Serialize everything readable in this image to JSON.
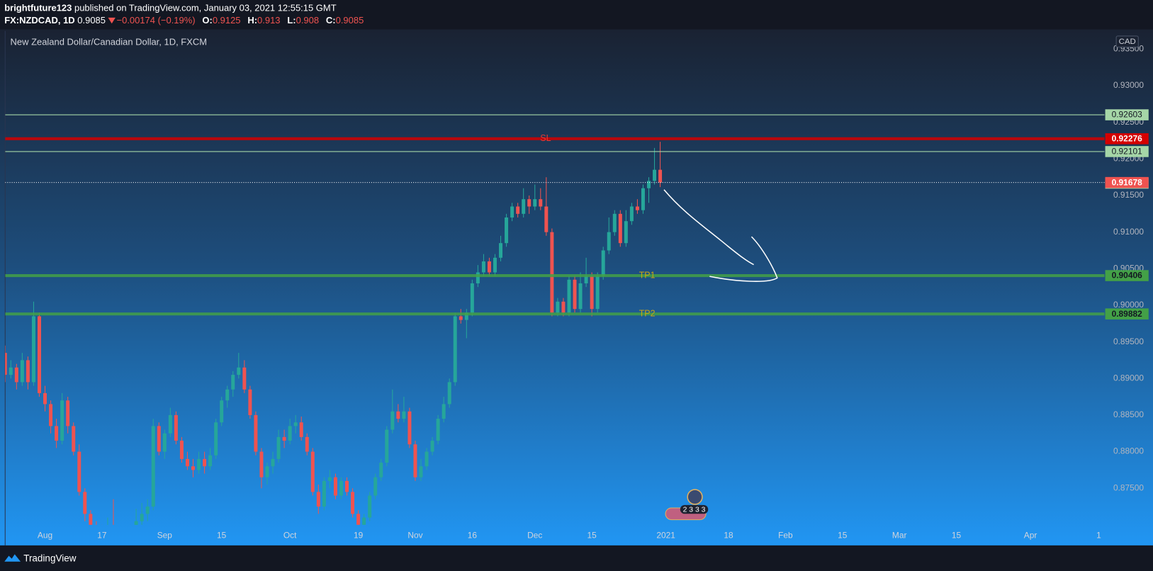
{
  "header": {
    "author": "brightfuture123",
    "published": "published on TradingView.com, January 03, 2021 12:55:15 GMT",
    "symbol": "FX:NZDCAD, 1D",
    "change": "−0.00174 (−0.19%)",
    "ohlc_labels": [
      "O:",
      "H:",
      "L:",
      "C:"
    ]
  },
  "chart_data": {
    "type": "candlestick",
    "title": "New Zealand Dollar/Canadian Dollar, 1D, FXCM",
    "currency": "CAD",
    "x": [
      "2020-07-23",
      "2020-07-24",
      "2020-07-27",
      "2020-07-28",
      "2020-07-29",
      "2020-07-30",
      "2020-07-31",
      "2020-08-03",
      "2020-08-04",
      "2020-08-05",
      "2020-08-06",
      "2020-08-07",
      "2020-08-10",
      "2020-08-11",
      "2020-08-12",
      "2020-08-13",
      "2020-08-14",
      "2020-08-17",
      "2020-08-18",
      "2020-08-19",
      "2020-08-20",
      "2020-08-21",
      "2020-08-24",
      "2020-08-25",
      "2020-08-26",
      "2020-08-27",
      "2020-08-28",
      "2020-08-31",
      "2020-09-01",
      "2020-09-02",
      "2020-09-03",
      "2020-09-04",
      "2020-09-07",
      "2020-09-08",
      "2020-09-09",
      "2020-09-10",
      "2020-09-11",
      "2020-09-14",
      "2020-09-15",
      "2020-09-16",
      "2020-09-17",
      "2020-09-18",
      "2020-09-21",
      "2020-09-22",
      "2020-09-23",
      "2020-09-24",
      "2020-09-25",
      "2020-09-28",
      "2020-09-29",
      "2020-09-30",
      "2020-10-01",
      "2020-10-02",
      "2020-10-05",
      "2020-10-06",
      "2020-10-07",
      "2020-10-08",
      "2020-10-09",
      "2020-10-12",
      "2020-10-13",
      "2020-10-14",
      "2020-10-15",
      "2020-10-16",
      "2020-10-19",
      "2020-10-20",
      "2020-10-21",
      "2020-10-22",
      "2020-10-23",
      "2020-10-26",
      "2020-10-27",
      "2020-10-28",
      "2020-10-29",
      "2020-10-30",
      "2020-11-02",
      "2020-11-03",
      "2020-11-04",
      "2020-11-05",
      "2020-11-06",
      "2020-11-09",
      "2020-11-10",
      "2020-11-11",
      "2020-11-12",
      "2020-11-13",
      "2020-11-16",
      "2020-11-17",
      "2020-11-18",
      "2020-11-19",
      "2020-11-20",
      "2020-11-23",
      "2020-11-24",
      "2020-11-25",
      "2020-11-26",
      "2020-11-27",
      "2020-11-30",
      "2020-12-01",
      "2020-12-02",
      "2020-12-03",
      "2020-12-04",
      "2020-12-07",
      "2020-12-08",
      "2020-12-09",
      "2020-12-10",
      "2020-12-11",
      "2020-12-14",
      "2020-12-15",
      "2020-12-16",
      "2020-12-17",
      "2020-12-18",
      "2020-12-21",
      "2020-12-22",
      "2020-12-23",
      "2020-12-24",
      "2020-12-25",
      "2020-12-28",
      "2020-12-29",
      "2020-12-30",
      "2020-12-31"
    ],
    "open": [
      0.8935,
      0.8905,
      0.8915,
      0.8895,
      0.8925,
      0.8895,
      0.8985,
      0.888,
      0.8865,
      0.8835,
      0.8815,
      0.887,
      0.8835,
      0.88,
      0.8745,
      0.8715,
      0.87,
      0.8695,
      0.869,
      0.87,
      0.869,
      0.8685,
      0.869,
      0.8695,
      0.8705,
      0.8715,
      0.8725,
      0.8835,
      0.88,
      0.8825,
      0.885,
      0.8815,
      0.879,
      0.878,
      0.8775,
      0.879,
      0.878,
      0.8795,
      0.884,
      0.887,
      0.8885,
      0.8905,
      0.8915,
      0.8885,
      0.885,
      0.88,
      0.8765,
      0.878,
      0.879,
      0.882,
      0.8815,
      0.8835,
      0.884,
      0.882,
      0.88,
      0.8745,
      0.8725,
      0.876,
      0.8765,
      0.874,
      0.876,
      0.8745,
      0.8715,
      0.87,
      0.871,
      0.874,
      0.8765,
      0.8785,
      0.883,
      0.8855,
      0.8845,
      0.8855,
      0.881,
      0.8765,
      0.878,
      0.88,
      0.8815,
      0.8845,
      0.8865,
      0.8895,
      0.8985,
      0.898,
      0.899,
      0.903,
      0.9045,
      0.906,
      0.9045,
      0.9065,
      0.9085,
      0.912,
      0.9135,
      0.9125,
      0.9145,
      0.9135,
      0.9145,
      0.9135,
      0.91,
      0.899,
      0.9005,
      0.899,
      0.9035,
      0.8995,
      0.903,
      0.904,
      0.8995,
      0.904,
      0.9075,
      0.91,
      0.9125,
      0.9085,
      0.9115,
      0.9135,
      0.913,
      0.916,
      0.917,
      0.91852
    ],
    "high": [
      0.8945,
      0.8925,
      0.892,
      0.8935,
      0.893,
      0.9005,
      0.899,
      0.889,
      0.887,
      0.8845,
      0.888,
      0.8875,
      0.884,
      0.881,
      0.875,
      0.872,
      0.8705,
      0.87,
      0.871,
      0.8735,
      0.8695,
      0.8698,
      0.87,
      0.8722,
      0.873,
      0.8735,
      0.8845,
      0.884,
      0.883,
      0.886,
      0.8855,
      0.882,
      0.88,
      0.879,
      0.88,
      0.88,
      0.8805,
      0.8845,
      0.8875,
      0.889,
      0.891,
      0.8935,
      0.8925,
      0.889,
      0.8855,
      0.8805,
      0.8785,
      0.88,
      0.883,
      0.883,
      0.8845,
      0.885,
      0.8848,
      0.8825,
      0.8805,
      0.8755,
      0.8765,
      0.8775,
      0.877,
      0.8765,
      0.8765,
      0.875,
      0.872,
      0.8715,
      0.8745,
      0.877,
      0.879,
      0.8835,
      0.8885,
      0.8865,
      0.8875,
      0.886,
      0.8815,
      0.879,
      0.8805,
      0.882,
      0.885,
      0.8875,
      0.89,
      0.899,
      0.8995,
      0.8995,
      0.9035,
      0.9055,
      0.907,
      0.9065,
      0.907,
      0.9095,
      0.9125,
      0.914,
      0.914,
      0.916,
      0.915,
      0.9165,
      0.916,
      0.9175,
      0.9105,
      0.901,
      0.901,
      0.904,
      0.904,
      0.9045,
      0.9065,
      0.9045,
      0.9045,
      0.908,
      0.912,
      0.913,
      0.913,
      0.913,
      0.914,
      0.9145,
      0.9165,
      0.9175,
      0.9215,
      0.92234
    ],
    "low": [
      0.8895,
      0.89,
      0.8885,
      0.889,
      0.8885,
      0.889,
      0.8875,
      0.8855,
      0.8825,
      0.8805,
      0.881,
      0.8825,
      0.8795,
      0.874,
      0.8705,
      0.8695,
      0.8685,
      0.868,
      0.8685,
      0.8685,
      0.8675,
      0.868,
      0.8682,
      0.869,
      0.87,
      0.8705,
      0.872,
      0.8795,
      0.879,
      0.882,
      0.881,
      0.8785,
      0.8775,
      0.8765,
      0.877,
      0.877,
      0.8775,
      0.879,
      0.8835,
      0.886,
      0.8875,
      0.89,
      0.888,
      0.8845,
      0.8795,
      0.875,
      0.8755,
      0.877,
      0.8785,
      0.8805,
      0.881,
      0.8825,
      0.8815,
      0.8795,
      0.874,
      0.8715,
      0.872,
      0.875,
      0.8735,
      0.8735,
      0.874,
      0.871,
      0.8695,
      0.869,
      0.8705,
      0.8735,
      0.876,
      0.878,
      0.8825,
      0.884,
      0.884,
      0.8805,
      0.876,
      0.876,
      0.8775,
      0.8795,
      0.881,
      0.884,
      0.886,
      0.889,
      0.8975,
      0.8955,
      0.8985,
      0.9025,
      0.904,
      0.904,
      0.904,
      0.906,
      0.908,
      0.9115,
      0.912,
      0.912,
      0.9125,
      0.913,
      0.913,
      0.9095,
      0.8985,
      0.8985,
      0.8985,
      0.8985,
      0.899,
      0.899,
      0.9025,
      0.8985,
      0.899,
      0.9035,
      0.907,
      0.9095,
      0.908,
      0.908,
      0.911,
      0.9125,
      0.9125,
      0.914,
      0.9165,
      0.91615
    ],
    "close": [
      0.8905,
      0.8915,
      0.8895,
      0.8925,
      0.8895,
      0.8985,
      0.888,
      0.8865,
      0.8835,
      0.8815,
      0.887,
      0.8835,
      0.88,
      0.8745,
      0.8715,
      0.87,
      0.8695,
      0.869,
      0.87,
      0.869,
      0.8685,
      0.869,
      0.8695,
      0.8705,
      0.8715,
      0.8725,
      0.8835,
      0.88,
      0.8825,
      0.885,
      0.8815,
      0.879,
      0.878,
      0.8775,
      0.879,
      0.878,
      0.8795,
      0.884,
      0.887,
      0.8885,
      0.8905,
      0.8915,
      0.8885,
      0.885,
      0.88,
      0.8765,
      0.878,
      0.879,
      0.882,
      0.8815,
      0.8835,
      0.884,
      0.882,
      0.88,
      0.8745,
      0.8725,
      0.876,
      0.8765,
      0.874,
      0.876,
      0.8745,
      0.8715,
      0.87,
      0.871,
      0.874,
      0.8765,
      0.8785,
      0.883,
      0.8855,
      0.8845,
      0.8855,
      0.881,
      0.8765,
      0.878,
      0.88,
      0.8815,
      0.8845,
      0.8865,
      0.8895,
      0.8985,
      0.898,
      0.899,
      0.903,
      0.9045,
      0.906,
      0.9045,
      0.9065,
      0.9085,
      0.912,
      0.9135,
      0.9125,
      0.9145,
      0.9135,
      0.9145,
      0.9135,
      0.91,
      0.899,
      0.9005,
      0.899,
      0.9035,
      0.8995,
      0.903,
      0.904,
      0.8995,
      0.904,
      0.9075,
      0.91,
      0.9125,
      0.9085,
      0.9115,
      0.9135,
      0.913,
      0.916,
      0.917,
      0.91852,
      0.91678
    ],
    "up_color": "#26a69a",
    "down_color": "#ef5350",
    "ylim": [
      0.87,
      0.9375
    ],
    "yticks": [
      {
        "value": 0.875,
        "label": "0.87500"
      },
      {
        "value": 0.88,
        "label": "0.88000"
      },
      {
        "value": 0.885,
        "label": "0.88500"
      },
      {
        "value": 0.89,
        "label": "0.89000"
      },
      {
        "value": 0.895,
        "label": "0.89500"
      },
      {
        "value": 0.9,
        "label": "0.90000"
      },
      {
        "value": 0.905,
        "label": "0.90500"
      },
      {
        "value": 0.91,
        "label": "0.91000"
      },
      {
        "value": 0.915,
        "label": "0.91500"
      },
      {
        "value": 0.92,
        "label": "0.92000"
      },
      {
        "value": 0.925,
        "label": "0.92500"
      },
      {
        "value": 0.93,
        "label": "0.93000"
      },
      {
        "value": 0.935,
        "label": "0.93500"
      }
    ],
    "xlim": [
      "2020-07-23",
      "2021-04-20"
    ],
    "xticks": [
      {
        "value": "2020-08-03",
        "label": "Aug"
      },
      {
        "value": "2020-08-17",
        "label": "17"
      },
      {
        "value": "2020-09-01",
        "label": "Sep"
      },
      {
        "value": "2020-09-15",
        "label": "15"
      },
      {
        "value": "2020-10-01",
        "label": "Oct"
      },
      {
        "value": "2020-10-19",
        "label": "19"
      },
      {
        "value": "2020-11-02",
        "label": "Nov"
      },
      {
        "value": "2020-11-16",
        "label": "16"
      },
      {
        "value": "2020-12-01",
        "label": "Dec"
      },
      {
        "value": "2020-12-15",
        "label": "15"
      },
      {
        "value": "2021-01-01",
        "label": "2021"
      },
      {
        "value": "2021-01-18",
        "label": "18"
      },
      {
        "value": "2021-02-01",
        "label": "Feb"
      },
      {
        "value": "2021-02-15",
        "label": "15"
      },
      {
        "value": "2021-03-01",
        "label": "Mar"
      },
      {
        "value": "2021-03-15",
        "label": "15"
      },
      {
        "value": "2021-04-01",
        "label": "Apr"
      },
      {
        "value": "2021-04-19",
        "label": "1"
      }
    ],
    "levels": [
      {
        "value": 0.92603,
        "color": "#a5d6a7",
        "width": 1,
        "text_color": "#131722"
      },
      {
        "name": "SL",
        "value": 0.92276,
        "color": "#d50000",
        "width": 4,
        "text_color": "#ffffff",
        "name_color": "#e53935"
      },
      {
        "value": 0.92101,
        "color": "#a5d6a7",
        "width": 1,
        "text_color": "#131722"
      },
      {
        "value": 0.91669,
        "color": "#a5d6a7",
        "width": 0,
        "text_color": "#131722"
      },
      {
        "name": "TP1",
        "value": 0.90406,
        "color": "#43a047",
        "width": 4,
        "text_color": "#131722",
        "name_color": "#c8a415"
      },
      {
        "name": "TP2",
        "value": 0.89882,
        "color": "#43a047",
        "width": 4,
        "text_color": "#131722",
        "name_color": "#c8a415"
      }
    ],
    "price_line_color": "#ef5350",
    "events_badge": "2 3 3 3"
  },
  "footer": {
    "brand": "TradingView"
  }
}
